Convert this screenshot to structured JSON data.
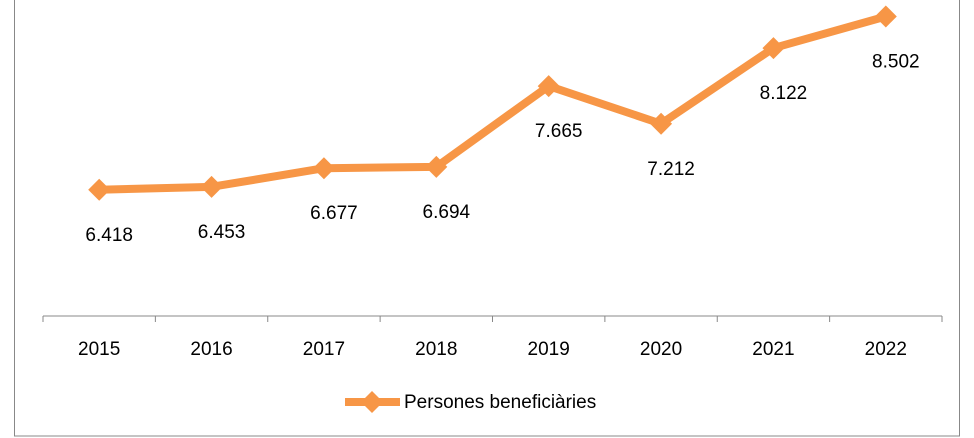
{
  "chart_data": {
    "type": "line",
    "categories": [
      "2015",
      "2016",
      "2017",
      "2018",
      "2019",
      "2020",
      "2021",
      "2022"
    ],
    "series": [
      {
        "name": "Persones beneficiàries",
        "color": "#f79646",
        "values": [
          6418,
          6453,
          6677,
          6694,
          7665,
          7212,
          8122,
          8502
        ],
        "value_labels": [
          "6.418",
          "6.453",
          "6.677",
          "6.694",
          "7.665",
          "7.212",
          "8.122",
          "8.502"
        ]
      }
    ],
    "ylim": [
      4900,
      8700
    ],
    "legend": "bottom"
  }
}
